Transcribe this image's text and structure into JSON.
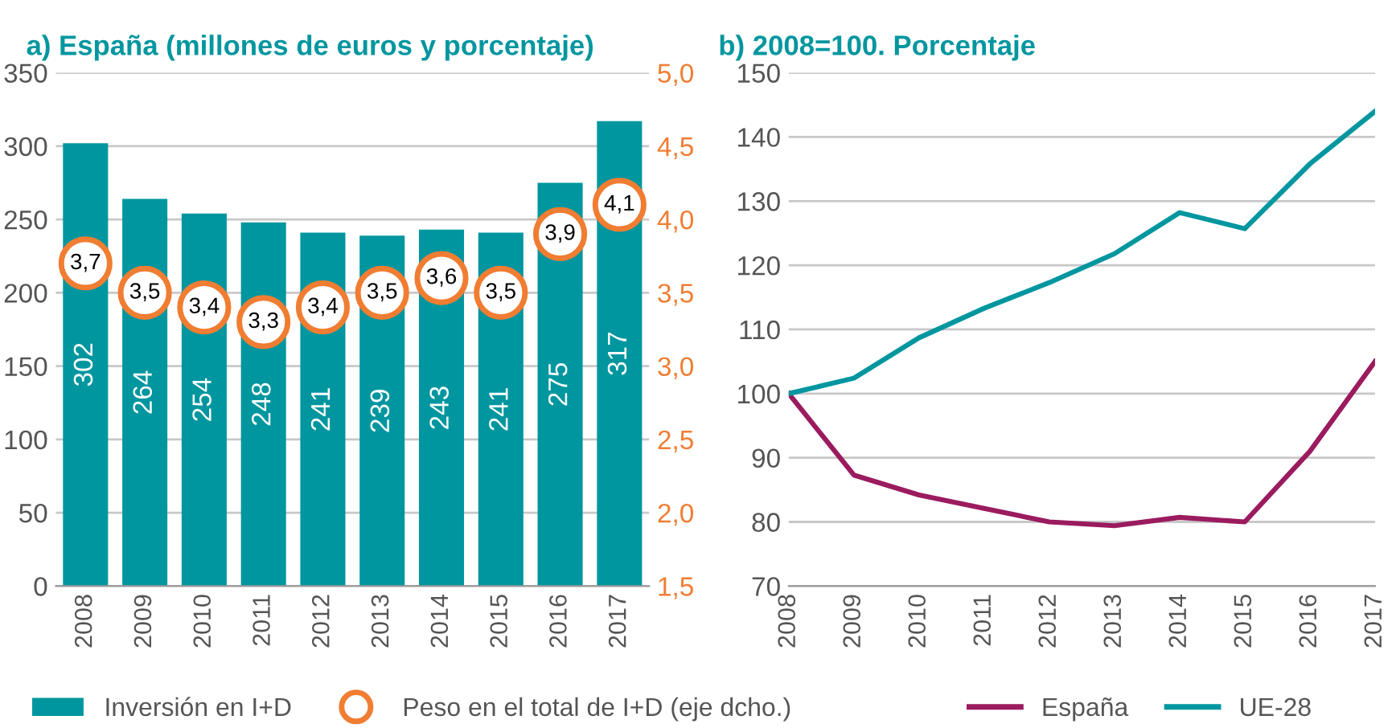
{
  "chart_data": [
    {
      "type": "bar",
      "title": "a) España (millones de euros y porcentaje)",
      "categories": [
        "2008",
        "2009",
        "2010",
        "2011",
        "2012",
        "2013",
        "2014",
        "2015",
        "2016",
        "2017"
      ],
      "series": [
        {
          "name": "Inversión en I+D",
          "type": "bar",
          "color": "#00969f",
          "values": [
            302,
            264,
            254,
            248,
            241,
            239,
            243,
            241,
            275,
            317
          ],
          "value_labels": [
            "302",
            "264",
            "254",
            "248",
            "241",
            "239",
            "243",
            "241",
            "275",
            "317"
          ]
        },
        {
          "name": "Peso en el total de I+D (eje dcho.)",
          "type": "scatter",
          "axis": "y2",
          "color": "#f07d32",
          "marker": "circle",
          "values": [
            3.7,
            3.5,
            3.4,
            3.3,
            3.4,
            3.5,
            3.6,
            3.5,
            3.9,
            4.1
          ],
          "value_labels": [
            "3,7",
            "3,5",
            "3,4",
            "3,3",
            "3,4",
            "3,5",
            "3,6",
            "3,5",
            "3,9",
            "4,1"
          ]
        }
      ],
      "ylim": [
        0,
        350
      ],
      "yticks": [
        0,
        50,
        100,
        150,
        200,
        250,
        300,
        350
      ],
      "y2lim": [
        1.5,
        5.0
      ],
      "y2ticks": [
        {
          "value": 1.5,
          "label": "1,5"
        },
        {
          "value": 2.0,
          "label": "2,0"
        },
        {
          "value": 2.5,
          "label": "2,5"
        },
        {
          "value": 3.0,
          "label": "3,0"
        },
        {
          "value": 3.5,
          "label": "3,5"
        },
        {
          "value": 4.0,
          "label": "4,0"
        },
        {
          "value": 4.5,
          "label": "4,5"
        },
        {
          "value": 5.0,
          "label": "5,0"
        }
      ],
      "grid": "y",
      "legend": "bottom"
    },
    {
      "type": "line",
      "title": "b) 2008=100. Porcentaje",
      "categories": [
        "2008",
        "2009",
        "2010",
        "2011",
        "2012",
        "2013",
        "2014",
        "2015",
        "2016",
        "2017"
      ],
      "series": [
        {
          "name": "España",
          "color": "#9b1b5f",
          "values": [
            100,
            87.3,
            84.2,
            82.1,
            80,
            79.4,
            80.7,
            80,
            91,
            105
          ]
        },
        {
          "name": "UE-28",
          "color": "#00969f",
          "values": [
            100,
            102.4,
            108.7,
            113.3,
            117.3,
            121.8,
            128.2,
            125.7,
            135.8,
            144
          ]
        }
      ],
      "ylim": [
        70,
        150
      ],
      "yticks": [
        70,
        80,
        90,
        100,
        110,
        120,
        130,
        140,
        150
      ],
      "grid": "y",
      "legend": "bottom",
      "line_style": "solid",
      "marker": "none"
    }
  ]
}
